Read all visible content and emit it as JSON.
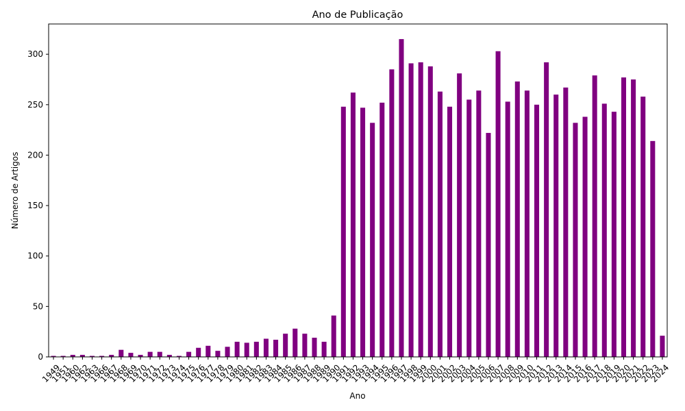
{
  "chart_data": {
    "type": "bar",
    "title": "Ano de Publicação",
    "xlabel": "Ano",
    "ylabel": "Número de Artigos",
    "ylim": [
      0,
      330
    ],
    "yticks": [
      0,
      50,
      100,
      150,
      200,
      250,
      300
    ],
    "grid": false,
    "bar_color": "#800080",
    "categories": [
      "1949",
      "1951",
      "1960",
      "1962",
      "1963",
      "1966",
      "1967",
      "1968",
      "1969",
      "1970",
      "1971",
      "1972",
      "1973",
      "1974",
      "1975",
      "1976",
      "1977",
      "1978",
      "1979",
      "1980",
      "1981",
      "1982",
      "1983",
      "1984",
      "1985",
      "1986",
      "1987",
      "1988",
      "1989",
      "1990",
      "1991",
      "1992",
      "1993",
      "1994",
      "1995",
      "1996",
      "1997",
      "1998",
      "1999",
      "2000",
      "2001",
      "2002",
      "2003",
      "2004",
      "2005",
      "2006",
      "2007",
      "2008",
      "2009",
      "2010",
      "2011",
      "2012",
      "2013",
      "2014",
      "2015",
      "2016",
      "2017",
      "2018",
      "2019",
      "2020",
      "2021",
      "2022",
      "2023",
      "2024"
    ],
    "values": [
      1,
      1,
      2,
      2,
      1,
      1,
      2,
      7,
      4,
      2,
      5,
      5,
      2,
      1,
      5,
      9,
      11,
      6,
      10,
      15,
      14,
      15,
      18,
      17,
      23,
      28,
      23,
      19,
      15,
      41,
      248,
      262,
      247,
      232,
      252,
      285,
      315,
      291,
      292,
      288,
      263,
      248,
      281,
      255,
      264,
      222,
      303,
      253,
      273,
      264,
      250,
      292,
      260,
      267,
      232,
      238,
      279,
      251,
      243,
      277,
      275,
      258,
      214,
      21
    ]
  }
}
